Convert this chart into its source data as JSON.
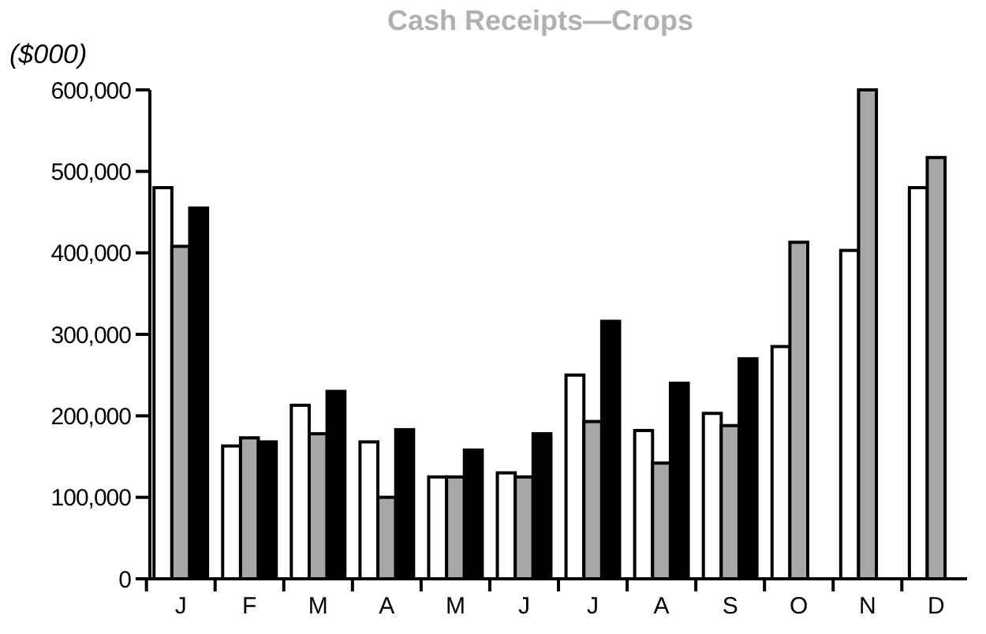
{
  "chart_data": {
    "type": "bar",
    "title": "Cash Receipts—Crops",
    "ylabel": "($000)",
    "categories": [
      "J",
      "F",
      "M",
      "A",
      "M",
      "J",
      "J",
      "A",
      "S",
      "O",
      "N",
      "D"
    ],
    "series": [
      {
        "color": "#ffffff",
        "values": [
          480000,
          163000,
          213000,
          168000,
          125000,
          130000,
          250000,
          182000,
          203000,
          285000,
          403000,
          480000
        ]
      },
      {
        "color": "#a8a8a8",
        "values": [
          408000,
          173000,
          178000,
          100000,
          125000,
          125000,
          193000,
          142000,
          188000,
          413000,
          600000,
          517000
        ]
      },
      {
        "color": "#000000",
        "values": [
          455000,
          168000,
          230000,
          183000,
          158000,
          178000,
          316000,
          240000,
          270000,
          null,
          null,
          null
        ]
      }
    ],
    "ylim": [
      0,
      600000
    ],
    "yticks": [
      {
        "value": 0,
        "label": "0"
      },
      {
        "value": 100000,
        "label": "100,000"
      },
      {
        "value": 200000,
        "label": "200,000"
      },
      {
        "value": 300000,
        "label": "300,000"
      },
      {
        "value": 400000,
        "label": "400,000"
      },
      {
        "value": 500000,
        "label": "500,000"
      },
      {
        "value": 600000,
        "label": "600,000"
      }
    ],
    "grid": false
  }
}
